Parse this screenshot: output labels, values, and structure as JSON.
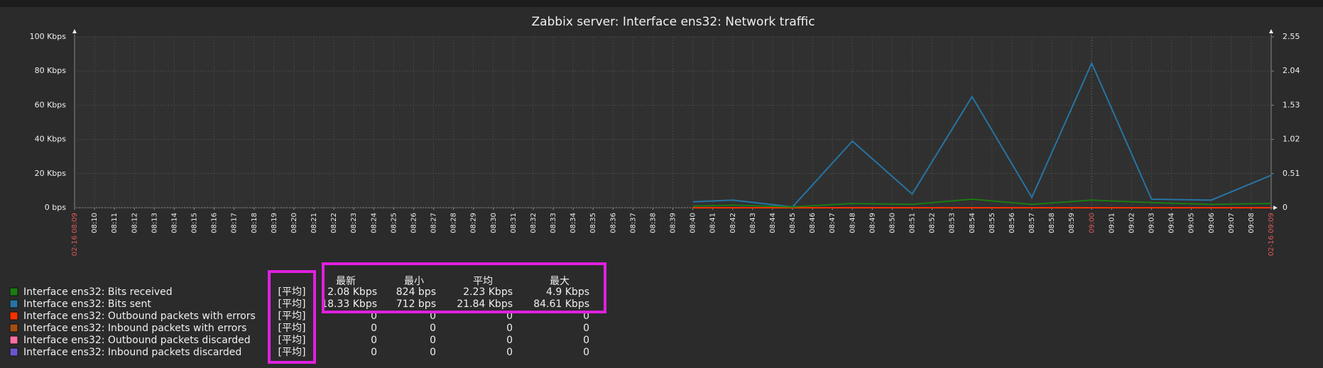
{
  "chart_data": {
    "type": "line",
    "title": "Zabbix server: Interface ens32: Network traffic",
    "x": [
      "08:40",
      "08:42",
      "08:45",
      "08:48",
      "08:51",
      "08:54",
      "08:57",
      "09:00",
      "09:03",
      "09:06",
      "09:09"
    ],
    "series": [
      {
        "name": "Interface ens32: Bits received",
        "color": "#1a7c11",
        "values": [
          1,
          1.5,
          0.5,
          2.5,
          2,
          5,
          2,
          4.5,
          3,
          2,
          2.5
        ]
      },
      {
        "name": "Interface ens32: Bits sent",
        "color": "#2774a4",
        "values": [
          3.5,
          4.5,
          0.5,
          39,
          8,
          65,
          6,
          84.61,
          5,
          4.5,
          19
        ]
      },
      {
        "name": "Interface ens32: Outbound packets with errors",
        "color": "#f63100",
        "axis": "y2",
        "values": [
          0,
          0,
          0,
          0,
          0,
          0,
          0,
          0,
          0,
          0,
          0
        ]
      },
      {
        "name": "Interface ens32: Inbound packets with errors",
        "color": "#a54f10",
        "axis": "y2",
        "values": [
          0,
          0,
          0,
          0,
          0,
          0,
          0,
          0,
          0,
          0,
          0
        ]
      },
      {
        "name": "Interface ens32: Outbound packets discarded",
        "color": "#fc6ea3",
        "axis": "y2",
        "values": [
          0,
          0,
          0,
          0,
          0,
          0,
          0,
          0,
          0,
          0,
          0
        ]
      },
      {
        "name": "Interface ens32: Inbound packets discarded",
        "color": "#6a55d0",
        "axis": "y2",
        "values": [
          0,
          0,
          0,
          0,
          0,
          0,
          0,
          0,
          0,
          0,
          0
        ]
      }
    ],
    "ylim": [
      0,
      100
    ],
    "yticks": [
      {
        "value": 0,
        "label": "0 bps"
      },
      {
        "value": 20,
        "label": "20 Kbps"
      },
      {
        "value": 40,
        "label": "40 Kbps"
      },
      {
        "value": 60,
        "label": "60 Kbps"
      },
      {
        "value": 80,
        "label": "80 Kbps"
      },
      {
        "value": 100,
        "label": "100 Kbps"
      }
    ],
    "y2lim": [
      0,
      2.55
    ],
    "y2ticks": [
      0,
      0.51,
      1.02,
      1.53,
      2.04,
      2.55
    ],
    "xticks": [
      "02-16 08:09",
      "08:10",
      "08:11",
      "08:12",
      "08:13",
      "08:14",
      "08:15",
      "08:16",
      "08:17",
      "08:18",
      "08:19",
      "08:20",
      "08:21",
      "08:22",
      "08:23",
      "08:24",
      "08:25",
      "08:26",
      "08:27",
      "08:28",
      "08:29",
      "08:30",
      "08:31",
      "08:32",
      "08:33",
      "08:34",
      "08:35",
      "08:36",
      "08:37",
      "08:38",
      "08:39",
      "08:40",
      "08:41",
      "08:42",
      "08:43",
      "08:44",
      "08:45",
      "08:46",
      "08:47",
      "08:48",
      "08:49",
      "08:50",
      "08:51",
      "08:52",
      "08:53",
      "08:54",
      "08:55",
      "08:56",
      "08:57",
      "08:58",
      "08:59",
      "09:00",
      "09:01",
      "09:02",
      "09:03",
      "09:04",
      "09:05",
      "09:06",
      "09:07",
      "09:08",
      "02-16 09:09"
    ],
    "grid": true,
    "legend": {
      "headers": [
        "最新",
        "最小",
        "平均",
        "最大"
      ],
      "rows": [
        {
          "function": "[平均]",
          "stats": [
            "2.08 Kbps",
            "824 bps",
            "2.23 Kbps",
            "4.9 Kbps"
          ]
        },
        {
          "function": "[平均]",
          "stats": [
            "18.33 Kbps",
            "712 bps",
            "21.84 Kbps",
            "84.61 Kbps"
          ]
        },
        {
          "function": "[平均]",
          "stats": [
            "0",
            "0",
            "0",
            "0"
          ]
        },
        {
          "function": "[平均]",
          "stats": [
            "0",
            "0",
            "0",
            "0"
          ]
        },
        {
          "function": "[平均]",
          "stats": [
            "0",
            "0",
            "0",
            "0"
          ]
        },
        {
          "function": "[平均]",
          "stats": [
            "0",
            "0",
            "0",
            "0"
          ]
        }
      ]
    }
  }
}
